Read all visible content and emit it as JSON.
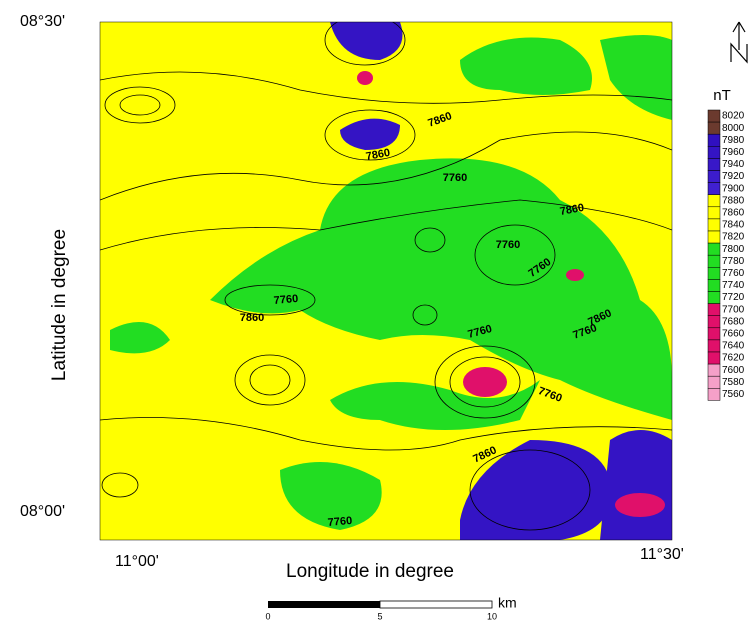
{
  "map": {
    "corner_labels": [
      "08°30'",
      "08°00'",
      "11°00'",
      "11°30'"
    ],
    "x_label": "Longitude in degree",
    "y_label": "Latitude in degree",
    "contour_labels": [
      7860,
      7860,
      7760,
      7860,
      7760,
      7760,
      7760,
      7860,
      7760,
      7860,
      7760,
      7760,
      7860,
      7760
    ],
    "legend": {
      "title": "nT",
      "levels": [
        8020,
        8000,
        7980,
        7960,
        7940,
        7920,
        7900,
        7880,
        7860,
        7840,
        7820,
        7800,
        7780,
        7760,
        7740,
        7720,
        7700,
        7680,
        7660,
        7640,
        7620,
        7600,
        7580,
        7560
      ],
      "colors": [
        "#6b3a2e",
        "#6b3a2e",
        "#3010c0",
        "#3414c4",
        "#3818c8",
        "#3c1ccc",
        "#4020d0",
        "#ffff00",
        "#ffff00",
        "#ffff00",
        "#ffff00",
        "#22dd22",
        "#22dd22",
        "#22dd22",
        "#22dd22",
        "#22dd22",
        "#e0106a",
        "#e0106a",
        "#e0106a",
        "#e0106a",
        "#e0106a",
        "#f5a0c8",
        "#f5a0c8",
        "#f5a0c8"
      ]
    },
    "scale_bar": {
      "ticks": [
        "0",
        "5",
        "10"
      ],
      "unit": "km"
    }
  }
}
